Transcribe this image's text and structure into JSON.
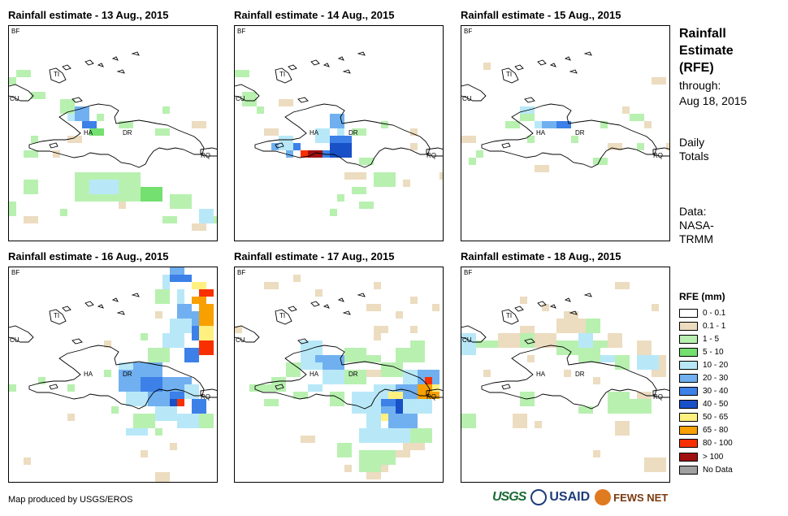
{
  "panels": [
    {
      "title": "Rainfall estimate - 13 Aug., 2015"
    },
    {
      "title": "Rainfall estimate - 14 Aug., 2015"
    },
    {
      "title": "Rainfall estimate - 15 Aug., 2015"
    },
    {
      "title": "Rainfall estimate - 16 Aug., 2015"
    },
    {
      "title": "Rainfall estimate - 17 Aug., 2015"
    },
    {
      "title": "Rainfall estimate - 18 Aug., 2015"
    }
  ],
  "map_labels": [
    "BF",
    "CU",
    "TI",
    "HA",
    "DR",
    "RQ"
  ],
  "sidebar": {
    "title": "Rainfall Estimate (RFE)",
    "through_label": "through:",
    "through_date": "Aug 18, 2015",
    "daily": "Daily Totals",
    "data_label": "Data: NASA-TRMM"
  },
  "legend": {
    "title": "RFE (mm)",
    "items": [
      {
        "label": "0 - 0.1",
        "color": "#ffffff"
      },
      {
        "label": "0.1 - 1",
        "color": "#ecdcc0"
      },
      {
        "label": "1 - 5",
        "color": "#b8f0b0"
      },
      {
        "label": "5 - 10",
        "color": "#74e070"
      },
      {
        "label": "10 - 20",
        "color": "#b8e8f8"
      },
      {
        "label": "20 - 30",
        "color": "#70b0f0"
      },
      {
        "label": "30 - 40",
        "color": "#3c80e8"
      },
      {
        "label": "40 - 50",
        "color": "#1850c8"
      },
      {
        "label": "50 - 65",
        "color": "#fff080"
      },
      {
        "label": "65 - 80",
        "color": "#f8a000"
      },
      {
        "label": "80 - 100",
        "color": "#f83000"
      },
      {
        "label": "> 100",
        "color": "#a01010"
      },
      {
        "label": "No Data",
        "color": "#a0a0a0"
      }
    ]
  },
  "credit": "Map produced by USGS/EROS",
  "logos": {
    "usgs": "USGS",
    "usaid": "USAID",
    "fews": "FEWS NET"
  }
}
